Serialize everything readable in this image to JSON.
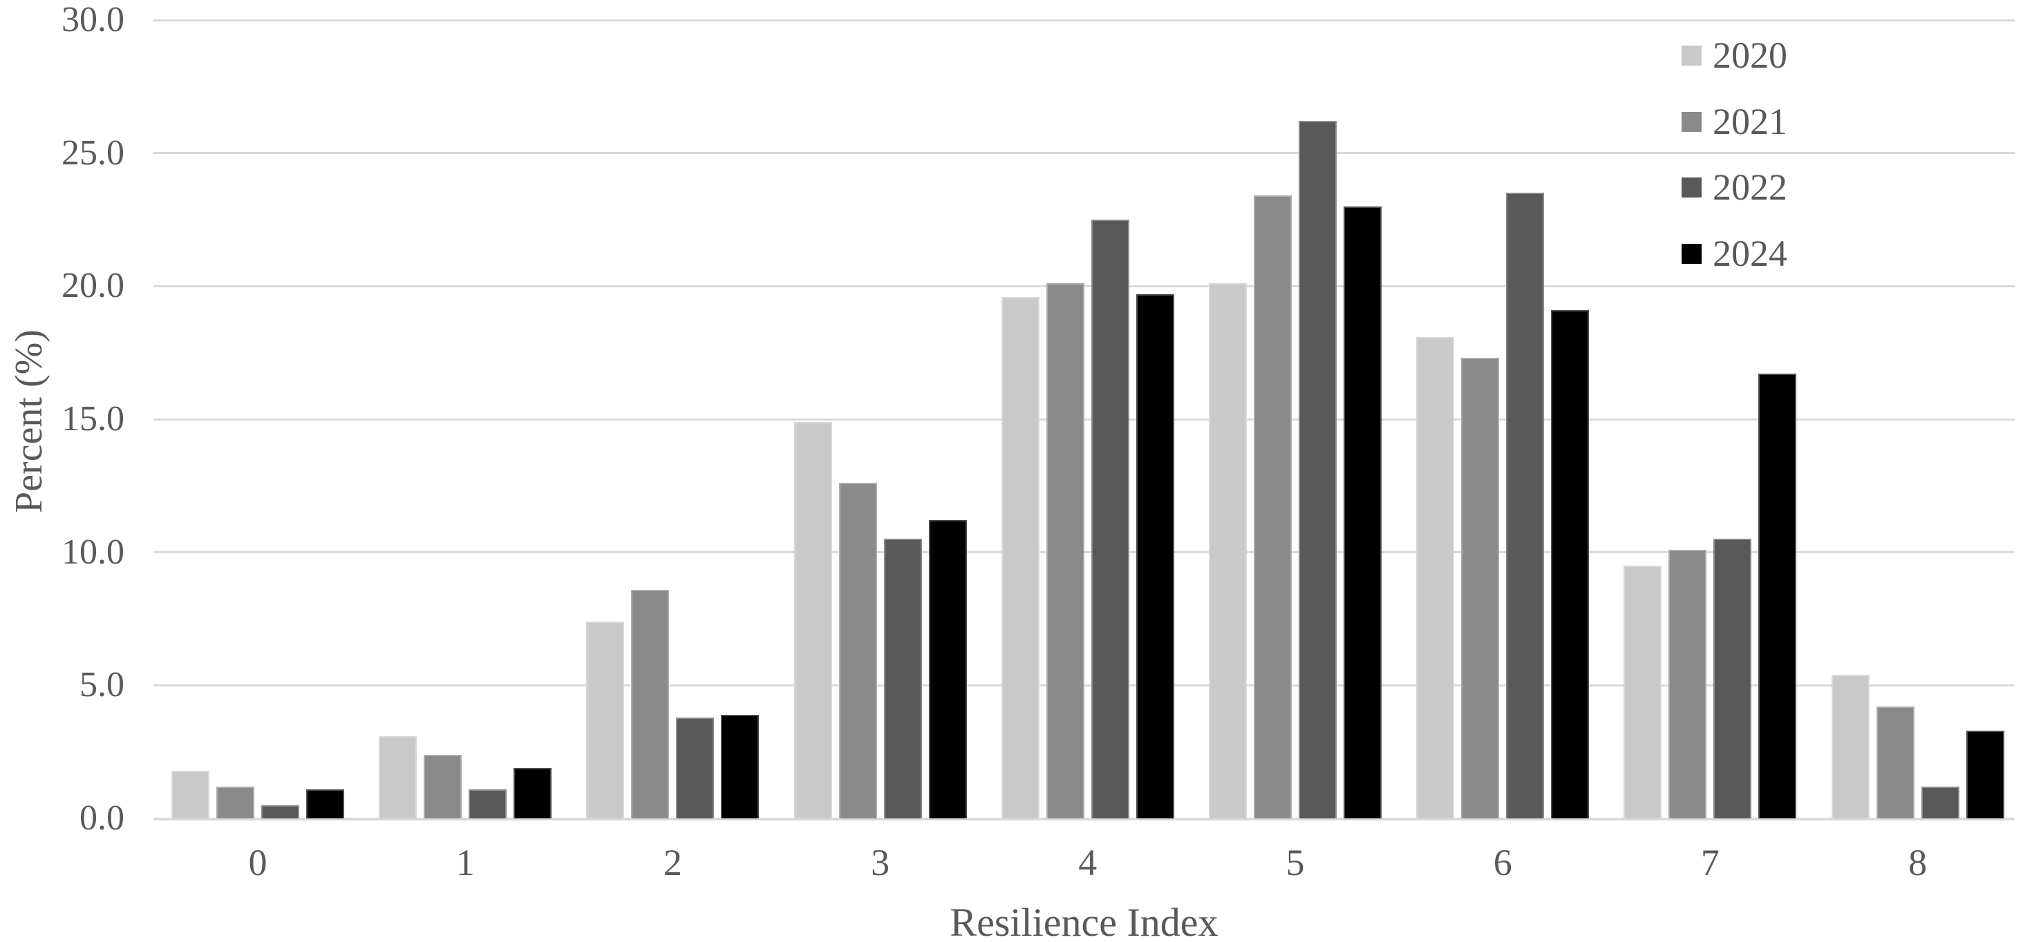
{
  "chart_data": {
    "type": "bar",
    "title": "",
    "xlabel": "Resilience Index",
    "ylabel": "Percent (%)",
    "categories": [
      "0",
      "1",
      "2",
      "3",
      "4",
      "5",
      "6",
      "7",
      "8"
    ],
    "series": [
      {
        "name": "2020",
        "color": "#c9c9c9",
        "values": [
          1.8,
          3.1,
          7.4,
          14.9,
          19.6,
          20.1,
          18.1,
          9.5,
          5.4
        ]
      },
      {
        "name": "2021",
        "color": "#8a8a8a",
        "values": [
          1.2,
          2.4,
          8.6,
          12.6,
          20.1,
          23.4,
          17.3,
          10.1,
          4.2
        ]
      },
      {
        "name": "2022",
        "color": "#595959",
        "values": [
          0.5,
          1.1,
          3.8,
          10.5,
          22.5,
          26.2,
          23.5,
          10.5,
          1.2
        ]
      },
      {
        "name": "2024",
        "color": "#000000",
        "values": [
          1.1,
          1.9,
          3.9,
          11.2,
          19.7,
          23.0,
          19.1,
          16.7,
          3.3
        ]
      }
    ],
    "y_ticks": [
      "0.0",
      "5.0",
      "10.0",
      "15.0",
      "20.0",
      "25.0",
      "30.0"
    ],
    "ylim": [
      0,
      30
    ],
    "y_tick_step": 5,
    "grid": true,
    "legend_position": "top-right",
    "legend_entries": [
      "2020",
      "2021",
      "2022",
      "2024"
    ],
    "colors": {
      "text": "#595959",
      "gridline": "#d9d9d9",
      "background": "#ffffff"
    }
  }
}
